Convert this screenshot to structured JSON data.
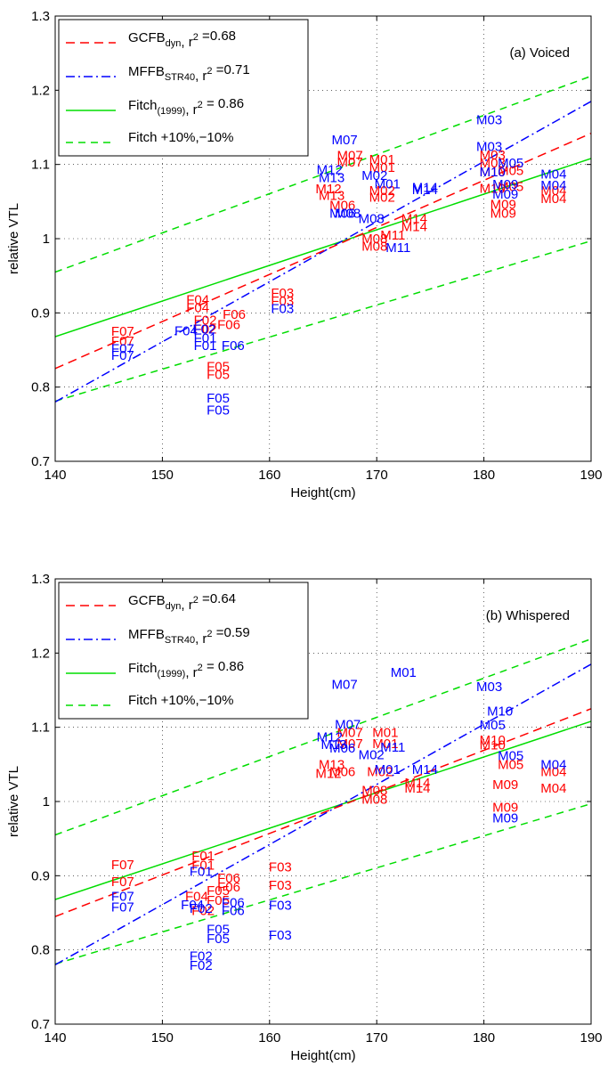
{
  "colors": {
    "gcfb": "#ff0000",
    "mffb": "#0000ff",
    "fitch": "#00dd00",
    "axes": "#000000"
  },
  "chart_data": [
    {
      "type": "scatter",
      "subplot_label": "(a) Voiced",
      "xlabel": "Height(cm)",
      "ylabel": "relative VTL",
      "xlim": [
        140,
        190
      ],
      "ylim": [
        0.7,
        1.3
      ],
      "xticks": [
        "140",
        "150",
        "160",
        "170",
        "180",
        "190"
      ],
      "yticks": [
        "0.7",
        "0.8",
        "0.9",
        "1",
        "1.1",
        "1.2",
        "1.3"
      ],
      "grid": true,
      "legend_position": "top-left",
      "legend": [
        {
          "key": "gcfb",
          "label_main": "GCFB",
          "label_sub": "dyn",
          "label_rest": ", r",
          "label_sup": "2",
          "label_end": " =0.68"
        },
        {
          "key": "mffb",
          "label_main": "MFFB",
          "label_sub": "STR40",
          "label_rest": ", r",
          "label_sup": "2",
          "label_end": " =0.71"
        },
        {
          "key": "fitch",
          "label_main": "Fitch",
          "label_sub": "(1999)",
          "label_rest": ", r",
          "label_sup": "2",
          "label_end": " = 0.86"
        },
        {
          "key": "fitch_band",
          "label_main": "Fitch +10%,−10%",
          "label_sub": "",
          "label_rest": "",
          "label_sup": "",
          "label_end": ""
        }
      ],
      "lines": {
        "gcfb": [
          [
            140,
            0.825
          ],
          [
            190,
            1.142
          ]
        ],
        "mffb": [
          [
            140,
            0.78
          ],
          [
            190,
            1.185
          ]
        ],
        "fitch": [
          [
            140,
            0.868
          ],
          [
            190,
            1.108
          ]
        ],
        "fitch_upper": [
          [
            140,
            0.955
          ],
          [
            190,
            1.219
          ]
        ],
        "fitch_lower": [
          [
            140,
            0.781
          ],
          [
            190,
            0.997
          ]
        ]
      },
      "points": [
        {
          "s": "gcfb",
          "t": "F07",
          "x": 146.3,
          "y": 0.875
        },
        {
          "s": "gcfb",
          "t": "F07",
          "x": 146.3,
          "y": 0.862
        },
        {
          "s": "gcfb",
          "t": "F04",
          "x": 153.3,
          "y": 0.918
        },
        {
          "s": "gcfb",
          "t": "F04",
          "x": 153.3,
          "y": 0.907
        },
        {
          "s": "gcfb",
          "t": "F02",
          "x": 154.0,
          "y": 0.89
        },
        {
          "s": "gcfb",
          "t": "F02",
          "x": 154.0,
          "y": 0.878
        },
        {
          "s": "gcfb",
          "t": "F06",
          "x": 156.7,
          "y": 0.898
        },
        {
          "s": "gcfb",
          "t": "F06",
          "x": 156.2,
          "y": 0.884
        },
        {
          "s": "gcfb",
          "t": "F05",
          "x": 155.2,
          "y": 0.828
        },
        {
          "s": "gcfb",
          "t": "F05",
          "x": 155.2,
          "y": 0.817
        },
        {
          "s": "gcfb",
          "t": "F03",
          "x": 161.2,
          "y": 0.927
        },
        {
          "s": "gcfb",
          "t": "F03",
          "x": 161.2,
          "y": 0.916
        },
        {
          "s": "gcfb",
          "t": "M07",
          "x": 167.5,
          "y": 1.112
        },
        {
          "s": "gcfb",
          "t": "M07",
          "x": 167.5,
          "y": 1.103
        },
        {
          "s": "gcfb",
          "t": "M01",
          "x": 170.5,
          "y": 1.107
        },
        {
          "s": "gcfb",
          "t": "M01",
          "x": 170.5,
          "y": 1.096
        },
        {
          "s": "gcfb",
          "t": "M12",
          "x": 165.5,
          "y": 1.067
        },
        {
          "s": "gcfb",
          "t": "M13",
          "x": 165.8,
          "y": 1.058
        },
        {
          "s": "gcfb",
          "t": "M02",
          "x": 170.5,
          "y": 1.065
        },
        {
          "s": "gcfb",
          "t": "M02",
          "x": 170.5,
          "y": 1.056
        },
        {
          "s": "gcfb",
          "t": "M06",
          "x": 166.8,
          "y": 1.045
        },
        {
          "s": "gcfb",
          "t": "M14",
          "x": 173.5,
          "y": 1.027
        },
        {
          "s": "gcfb",
          "t": "M14",
          "x": 173.5,
          "y": 1.016
        },
        {
          "s": "gcfb",
          "t": "M11",
          "x": 171.5,
          "y": 1.005
        },
        {
          "s": "gcfb",
          "t": "M08",
          "x": 169.8,
          "y": 1.0
        },
        {
          "s": "gcfb",
          "t": "M08",
          "x": 169.8,
          "y": 0.99
        },
        {
          "s": "gcfb",
          "t": "M03",
          "x": 180.8,
          "y": 1.113
        },
        {
          "s": "gcfb",
          "t": "M03",
          "x": 180.8,
          "y": 1.102
        },
        {
          "s": "gcfb",
          "t": "M05",
          "x": 182.5,
          "y": 1.092
        },
        {
          "s": "gcfb",
          "t": "M10",
          "x": 180.8,
          "y": 1.09
        },
        {
          "s": "gcfb",
          "t": "M04",
          "x": 186.5,
          "y": 1.065
        },
        {
          "s": "gcfb",
          "t": "M04",
          "x": 186.5,
          "y": 1.054
        },
        {
          "s": "gcfb",
          "t": "M09",
          "x": 181.8,
          "y": 1.046
        },
        {
          "s": "gcfb",
          "t": "M09",
          "x": 181.8,
          "y": 1.034
        },
        {
          "s": "gcfb",
          "t": "M05",
          "x": 182.5,
          "y": 1.07
        },
        {
          "s": "gcfb",
          "t": "M10",
          "x": 180.8,
          "y": 1.068
        },
        {
          "s": "mffb",
          "t": "F07",
          "x": 146.3,
          "y": 0.852
        },
        {
          "s": "mffb",
          "t": "F07",
          "x": 146.3,
          "y": 0.843
        },
        {
          "s": "mffb",
          "t": "F04",
          "x": 152.2,
          "y": 0.876
        },
        {
          "s": "mffb",
          "t": "F02",
          "x": 153.9,
          "y": 0.878
        },
        {
          "s": "mffb",
          "t": "F01",
          "x": 154.0,
          "y": 0.866
        },
        {
          "s": "mffb",
          "t": "F01",
          "x": 154.0,
          "y": 0.856
        },
        {
          "s": "mffb",
          "t": "F06",
          "x": 156.6,
          "y": 0.856
        },
        {
          "s": "mffb",
          "t": "F05",
          "x": 155.2,
          "y": 0.785
        },
        {
          "s": "mffb",
          "t": "F05",
          "x": 155.2,
          "y": 0.769
        },
        {
          "s": "mffb",
          "t": "F03",
          "x": 161.2,
          "y": 0.906
        },
        {
          "s": "mffb",
          "t": "M07",
          "x": 167.0,
          "y": 1.133
        },
        {
          "s": "mffb",
          "t": "M12",
          "x": 165.6,
          "y": 1.093
        },
        {
          "s": "mffb",
          "t": "M13",
          "x": 165.8,
          "y": 1.082
        },
        {
          "s": "mffb",
          "t": "M02",
          "x": 169.8,
          "y": 1.085
        },
        {
          "s": "mffb",
          "t": "M01",
          "x": 171.0,
          "y": 1.074
        },
        {
          "s": "mffb",
          "t": "M14",
          "x": 174.5,
          "y": 1.069
        },
        {
          "s": "mffb",
          "t": "M14",
          "x": 174.5,
          "y": 1.066
        },
        {
          "s": "mffb",
          "t": "M06",
          "x": 166.8,
          "y": 1.034
        },
        {
          "s": "mffb",
          "t": "M08",
          "x": 167.3,
          "y": 1.034
        },
        {
          "s": "mffb",
          "t": "M08",
          "x": 169.5,
          "y": 1.027
        },
        {
          "s": "mffb",
          "t": "M11",
          "x": 172.0,
          "y": 0.988
        },
        {
          "s": "mffb",
          "t": "M03",
          "x": 180.5,
          "y": 1.16
        },
        {
          "s": "mffb",
          "t": "M03",
          "x": 180.5,
          "y": 1.124
        },
        {
          "s": "mffb",
          "t": "M05",
          "x": 182.5,
          "y": 1.102
        },
        {
          "s": "mffb",
          "t": "M10",
          "x": 180.8,
          "y": 1.09
        },
        {
          "s": "mffb",
          "t": "M04",
          "x": 186.5,
          "y": 1.087
        },
        {
          "s": "mffb",
          "t": "M04",
          "x": 186.5,
          "y": 1.072
        },
        {
          "s": "mffb",
          "t": "M09",
          "x": 182.0,
          "y": 1.073
        },
        {
          "s": "mffb",
          "t": "M09",
          "x": 182.0,
          "y": 1.06
        }
      ]
    },
    {
      "type": "scatter",
      "subplot_label": "(b) Whispered",
      "xlabel": "Height(cm)",
      "ylabel": "relative VTL",
      "xlim": [
        140,
        190
      ],
      "ylim": [
        0.7,
        1.3
      ],
      "xticks": [
        "140",
        "150",
        "160",
        "170",
        "180",
        "190"
      ],
      "yticks": [
        "0.7",
        "0.8",
        "0.9",
        "1",
        "1.1",
        "1.2",
        "1.3"
      ],
      "grid": true,
      "legend_position": "top-left",
      "legend": [
        {
          "key": "gcfb",
          "label_main": "GCFB",
          "label_sub": "dyn",
          "label_rest": ", r",
          "label_sup": "2",
          "label_end": " =0.64"
        },
        {
          "key": "mffb",
          "label_main": "MFFB",
          "label_sub": "STR40",
          "label_rest": ", r",
          "label_sup": "2",
          "label_end": " =0.59"
        },
        {
          "key": "fitch",
          "label_main": "Fitch",
          "label_sub": "(1999)",
          "label_rest": ", r",
          "label_sup": "2",
          "label_end": " = 0.86"
        },
        {
          "key": "fitch_band",
          "label_main": "Fitch +10%,−10%",
          "label_sub": "",
          "label_rest": "",
          "label_sup": "",
          "label_end": ""
        }
      ],
      "lines": {
        "gcfb": [
          [
            140,
            0.845
          ],
          [
            190,
            1.125
          ]
        ],
        "mffb": [
          [
            140,
            0.78
          ],
          [
            190,
            1.185
          ]
        ],
        "fitch": [
          [
            140,
            0.868
          ],
          [
            190,
            1.108
          ]
        ],
        "fitch_upper": [
          [
            140,
            0.955
          ],
          [
            190,
            1.219
          ]
        ],
        "fitch_lower": [
          [
            140,
            0.781
          ],
          [
            190,
            0.997
          ]
        ]
      },
      "points": [
        {
          "s": "gcfb",
          "t": "F07",
          "x": 146.3,
          "y": 0.915
        },
        {
          "s": "gcfb",
          "t": "F07",
          "x": 146.3,
          "y": 0.892
        },
        {
          "s": "gcfb",
          "t": "F01",
          "x": 153.8,
          "y": 0.927
        },
        {
          "s": "gcfb",
          "t": "F01",
          "x": 153.8,
          "y": 0.914
        },
        {
          "s": "gcfb",
          "t": "F06",
          "x": 156.2,
          "y": 0.897
        },
        {
          "s": "gcfb",
          "t": "F06",
          "x": 156.2,
          "y": 0.885
        },
        {
          "s": "gcfb",
          "t": "F04",
          "x": 153.2,
          "y": 0.872
        },
        {
          "s": "gcfb",
          "t": "F02",
          "x": 153.8,
          "y": 0.853
        },
        {
          "s": "gcfb",
          "t": "F05",
          "x": 155.2,
          "y": 0.88
        },
        {
          "s": "gcfb",
          "t": "F05",
          "x": 155.2,
          "y": 0.867
        },
        {
          "s": "gcfb",
          "t": "F03",
          "x": 161.0,
          "y": 0.912
        },
        {
          "s": "gcfb",
          "t": "F03",
          "x": 161.0,
          "y": 0.887
        },
        {
          "s": "gcfb",
          "t": "M07",
          "x": 167.5,
          "y": 1.093
        },
        {
          "s": "gcfb",
          "t": "M07",
          "x": 167.5,
          "y": 1.078
        },
        {
          "s": "gcfb",
          "t": "M01",
          "x": 170.8,
          "y": 1.093
        },
        {
          "s": "gcfb",
          "t": "M01",
          "x": 170.8,
          "y": 1.078
        },
        {
          "s": "gcfb",
          "t": "M12",
          "x": 165.5,
          "y": 1.038
        },
        {
          "s": "gcfb",
          "t": "M13",
          "x": 165.8,
          "y": 1.05
        },
        {
          "s": "gcfb",
          "t": "M06",
          "x": 166.8,
          "y": 1.04
        },
        {
          "s": "gcfb",
          "t": "M14",
          "x": 173.8,
          "y": 1.025
        },
        {
          "s": "gcfb",
          "t": "M14",
          "x": 173.8,
          "y": 1.018
        },
        {
          "s": "gcfb",
          "t": "M02",
          "x": 170.3,
          "y": 1.04
        },
        {
          "s": "gcfb",
          "t": "M08",
          "x": 169.8,
          "y": 1.015
        },
        {
          "s": "gcfb",
          "t": "M08",
          "x": 169.8,
          "y": 1.003
        },
        {
          "s": "gcfb",
          "t": "M10",
          "x": 180.8,
          "y": 1.083
        },
        {
          "s": "gcfb",
          "t": "M10",
          "x": 180.8,
          "y": 1.076
        },
        {
          "s": "gcfb",
          "t": "M05",
          "x": 182.5,
          "y": 1.05
        },
        {
          "s": "gcfb",
          "t": "M04",
          "x": 186.5,
          "y": 1.04
        },
        {
          "s": "gcfb",
          "t": "M04",
          "x": 186.5,
          "y": 1.018
        },
        {
          "s": "gcfb",
          "t": "M09",
          "x": 182.0,
          "y": 1.023
        },
        {
          "s": "gcfb",
          "t": "M09",
          "x": 182.0,
          "y": 0.992
        },
        {
          "s": "mffb",
          "t": "F07",
          "x": 146.3,
          "y": 0.872
        },
        {
          "s": "mffb",
          "t": "F07",
          "x": 146.3,
          "y": 0.858
        },
        {
          "s": "mffb",
          "t": "F01",
          "x": 153.6,
          "y": 0.906
        },
        {
          "s": "mffb",
          "t": "F04",
          "x": 152.8,
          "y": 0.861
        },
        {
          "s": "mffb",
          "t": "F02",
          "x": 153.6,
          "y": 0.856
        },
        {
          "s": "mffb",
          "t": "F06",
          "x": 156.6,
          "y": 0.864
        },
        {
          "s": "mffb",
          "t": "F06",
          "x": 156.6,
          "y": 0.853
        },
        {
          "s": "mffb",
          "t": "F05",
          "x": 155.2,
          "y": 0.828
        },
        {
          "s": "mffb",
          "t": "F05",
          "x": 155.2,
          "y": 0.815
        },
        {
          "s": "mffb",
          "t": "F03",
          "x": 161.0,
          "y": 0.86
        },
        {
          "s": "mffb",
          "t": "F03",
          "x": 161.0,
          "y": 0.82
        },
        {
          "s": "mffb",
          "t": "F02",
          "x": 153.6,
          "y": 0.792
        },
        {
          "s": "mffb",
          "t": "F02",
          "x": 153.6,
          "y": 0.779
        },
        {
          "s": "mffb",
          "t": "M07",
          "x": 167.0,
          "y": 1.158
        },
        {
          "s": "mffb",
          "t": "M01",
          "x": 172.5,
          "y": 1.174
        },
        {
          "s": "mffb",
          "t": "M07",
          "x": 167.3,
          "y": 1.104
        },
        {
          "s": "mffb",
          "t": "M12",
          "x": 165.6,
          "y": 1.087
        },
        {
          "s": "mffb",
          "t": "M13",
          "x": 166.0,
          "y": 1.077
        },
        {
          "s": "mffb",
          "t": "M06",
          "x": 166.8,
          "y": 1.072
        },
        {
          "s": "mffb",
          "t": "M11",
          "x": 171.5,
          "y": 1.073
        },
        {
          "s": "mffb",
          "t": "M02",
          "x": 169.5,
          "y": 1.063
        },
        {
          "s": "mffb",
          "t": "M01",
          "x": 171.0,
          "y": 1.043
        },
        {
          "s": "mffb",
          "t": "M14",
          "x": 174.5,
          "y": 1.043
        },
        {
          "s": "mffb",
          "t": "M03",
          "x": 180.5,
          "y": 1.155
        },
        {
          "s": "mffb",
          "t": "M10",
          "x": 181.5,
          "y": 1.122
        },
        {
          "s": "mffb",
          "t": "M05",
          "x": 180.8,
          "y": 1.103
        },
        {
          "s": "mffb",
          "t": "M05",
          "x": 182.5,
          "y": 1.062
        },
        {
          "s": "mffb",
          "t": "M04",
          "x": 186.5,
          "y": 1.05
        },
        {
          "s": "mffb",
          "t": "M09",
          "x": 182.0,
          "y": 0.978
        }
      ]
    }
  ]
}
